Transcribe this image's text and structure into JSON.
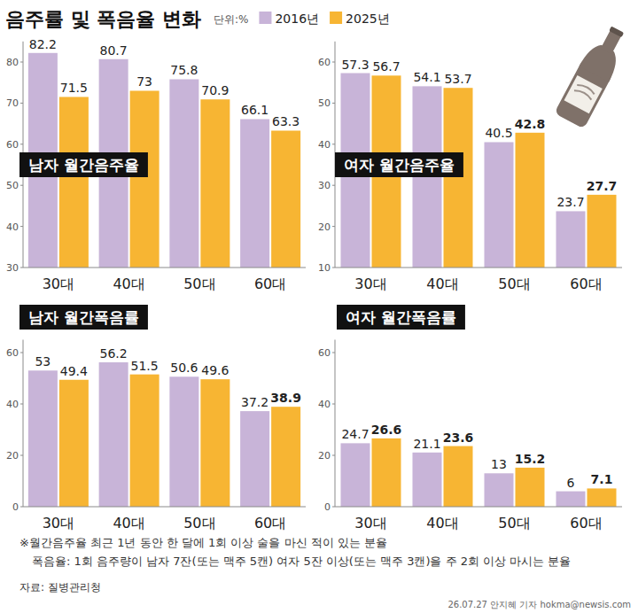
{
  "title": "음주률 및 폭음율 변화",
  "unit": "단위:%",
  "notes": [
    "※월간음주율 최근 1년 동안 한 달에 1회 이상 술을 마신 적이 있는 분율",
    "폭음율: 1회 음주량이 남자 7잔(또는 맥주 5캔) 여자 5잔 이상(또는 맥주 3캔)을 주 2회 이상 마시는 분율"
  ],
  "source": "자료: 질병관리청",
  "credit": "26.07.27 안지혜 기자 hokma@newsis.com",
  "chart_data": [
    {
      "type": "bar",
      "title": "남자 월간음주율",
      "categories": [
        "30대",
        "40대",
        "50대",
        "60대"
      ],
      "series": [
        {
          "name": "2016년",
          "color": "#c8b4d8",
          "values": [
            82.2,
            80.7,
            75.8,
            66.1
          ]
        },
        {
          "name": "2025년",
          "color": "#f7b533",
          "values": [
            71.5,
            73.0,
            70.9,
            63.3
          ]
        }
      ],
      "ylim": [
        30,
        85
      ],
      "yticks": [
        30,
        40,
        50,
        60,
        70,
        80
      ],
      "grid": false,
      "data_labels": true,
      "legend": "top"
    },
    {
      "type": "bar",
      "title": "여자 월간음주율",
      "categories": [
        "30대",
        "40대",
        "50대",
        "60대"
      ],
      "series": [
        {
          "name": "2016년",
          "color": "#c8b4d8",
          "values": [
            57.3,
            54.1,
            40.5,
            23.7
          ]
        },
        {
          "name": "2025년",
          "color": "#f7b533",
          "values": [
            56.7,
            53.7,
            42.8,
            27.7
          ]
        }
      ],
      "ylim": [
        10,
        65
      ],
      "yticks": [
        10,
        20,
        30,
        40,
        50,
        60
      ],
      "grid": false,
      "data_labels": true
    },
    {
      "type": "bar",
      "title": "남자 월간폭음률",
      "categories": [
        "30대",
        "40대",
        "50대",
        "60대"
      ],
      "series": [
        {
          "name": "2016년",
          "color": "#c8b4d8",
          "values": [
            53.0,
            56.2,
            50.6,
            37.2
          ]
        },
        {
          "name": "2025년",
          "color": "#f7b533",
          "values": [
            49.4,
            51.5,
            49.6,
            38.9
          ]
        }
      ],
      "ylim": [
        0,
        65
      ],
      "yticks": [
        0,
        20,
        40,
        60
      ],
      "grid": false,
      "data_labels": true
    },
    {
      "type": "bar",
      "title": "여자 월간폭음률",
      "categories": [
        "30대",
        "40대",
        "50대",
        "60대"
      ],
      "series": [
        {
          "name": "2016년",
          "color": "#c8b4d8",
          "values": [
            24.7,
            21.1,
            13.0,
            6.0
          ]
        },
        {
          "name": "2025년",
          "color": "#f7b533",
          "values": [
            26.6,
            23.6,
            15.2,
            7.1
          ]
        }
      ],
      "ylim": [
        0,
        65
      ],
      "yticks": [
        0,
        20,
        40,
        60
      ],
      "grid": false,
      "data_labels": true
    }
  ]
}
